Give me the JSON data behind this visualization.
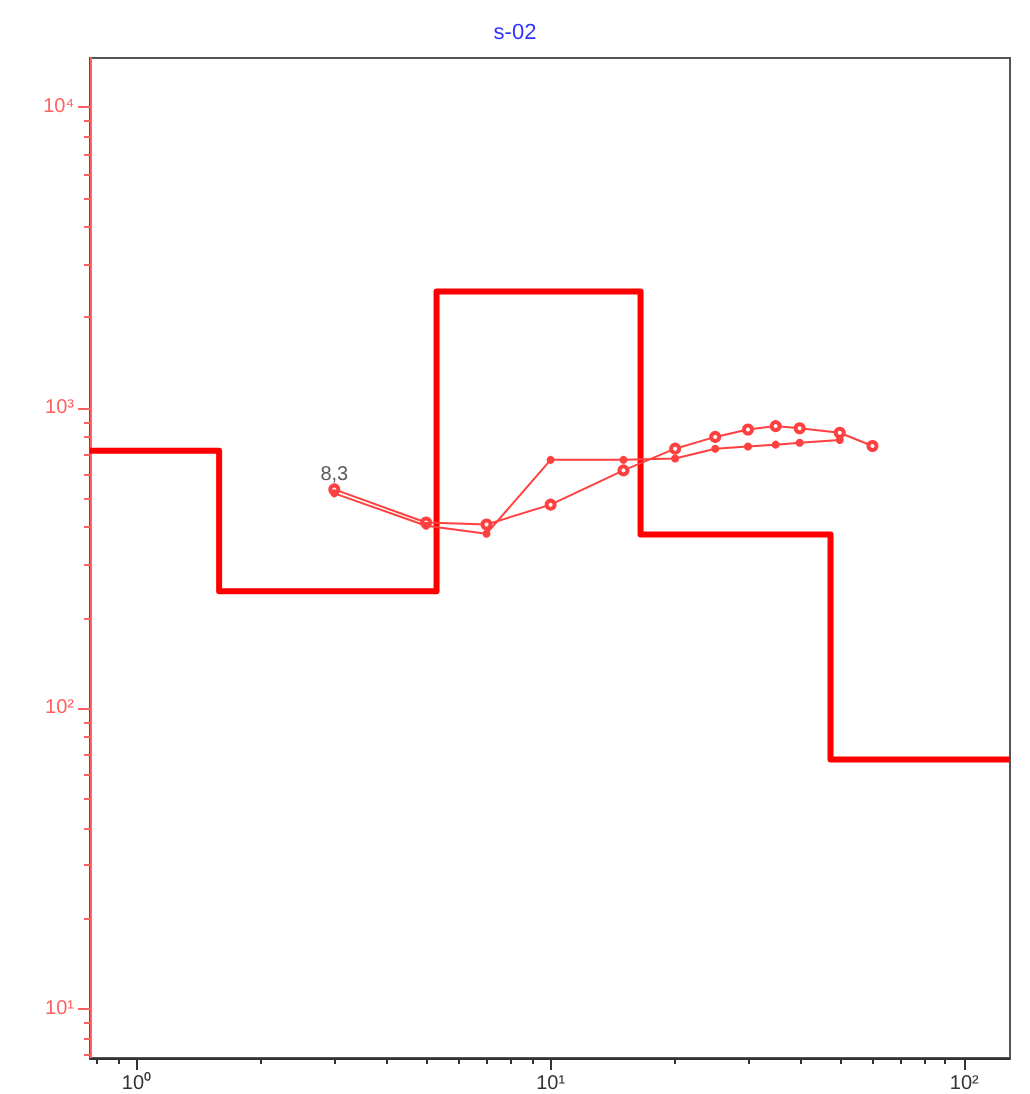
{
  "chart_data": {
    "type": "line",
    "title": "s-02",
    "series": [
      {
        "type": "step",
        "color": "#ff0000",
        "marker": "none",
        "x": [
          0.77,
          1.58,
          5.3,
          16.5,
          47.5,
          129
        ],
        "values": [
          720,
          245,
          2440,
          379,
          67.5,
          67.5
        ]
      },
      {
        "color": "#ff4040",
        "marker": "circle",
        "x": [
          3,
          5,
          7,
          10,
          15,
          20,
          25,
          30,
          35,
          40,
          50,
          60
        ],
        "values": [
          535,
          415,
          409,
          476,
          619,
          731,
          800,
          847,
          869,
          855,
          826,
          746
        ]
      },
      {
        "color": "#ff4040",
        "marker": "circle",
        "x": [
          3,
          5,
          7,
          10,
          15,
          20,
          25,
          30,
          35,
          40,
          50
        ],
        "values": [
          519,
          405,
          381,
          671,
          671,
          678,
          731,
          743,
          754,
          765,
          781
        ]
      }
    ],
    "annotations": [
      {
        "text": "8,3",
        "x": 3,
        "y": 535
      }
    ],
    "log": "xy",
    "xlim": [
      0.77,
      129
    ],
    "ylim": [
      6.85,
      14600
    ],
    "xticks": [
      {
        "value": 1,
        "label": "10⁰"
      },
      {
        "value": 10,
        "label": "10¹"
      },
      {
        "value": 100,
        "label": "10²"
      }
    ],
    "yticks": [
      {
        "value": 10,
        "label": "10¹"
      },
      {
        "value": 100,
        "label": "10²"
      },
      {
        "value": 1000,
        "label": "10³"
      },
      {
        "value": 10000,
        "label": "10⁴"
      }
    ],
    "grid": false
  }
}
